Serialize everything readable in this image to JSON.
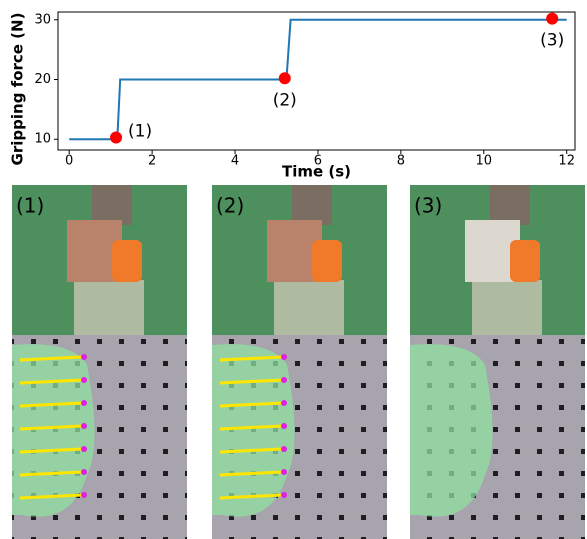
{
  "chart_data": {
    "type": "line",
    "xlabel": "Time (s)",
    "ylabel": "Gripping force (N)",
    "series": [
      {
        "color": "#1f77b4",
        "x": [
          0,
          1.16,
          1.23,
          5.24,
          5.34,
          12
        ],
        "values": [
          10,
          10,
          20,
          20,
          30,
          30
        ]
      }
    ],
    "markers": {
      "color": "#ff0000",
      "x": [
        1.13,
        5.2,
        11.65
      ],
      "values": [
        10.3,
        20.2,
        30.2
      ],
      "labels": [
        "(1)",
        "(2)",
        "(3)"
      ]
    },
    "xlim": [
      -0.27,
      12.2
    ],
    "ylim": [
      8.2,
      31.3
    ],
    "xticks": [
      0,
      2,
      4,
      6,
      8,
      10,
      12
    ],
    "yticks": [
      10,
      20,
      30
    ]
  },
  "panels": [
    {
      "label": "(1)"
    },
    {
      "label": "(2)"
    },
    {
      "label": "(3)"
    }
  ]
}
